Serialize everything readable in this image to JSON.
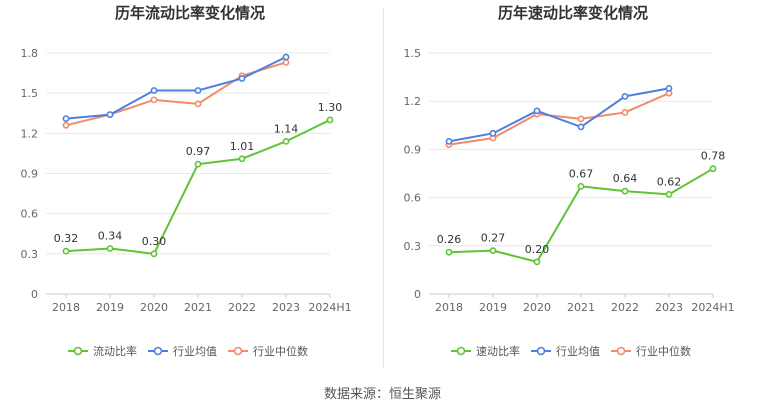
{
  "source": "数据来源：恒生聚源",
  "colors": {
    "company": "#5fc335",
    "industry_avg": "#4e7fe0",
    "industry_median": "#f38a6a",
    "grid": "#e8e8e8",
    "axis_text": "#666666",
    "title": "#333333"
  },
  "chart_data": [
    {
      "type": "line",
      "title": "历年流动比率变化情况",
      "categories": [
        "2018",
        "2019",
        "2020",
        "2021",
        "2022",
        "2023",
        "2024H1"
      ],
      "ylim": [
        0,
        1.8
      ],
      "yticks": [
        "0",
        "0.3",
        "0.6",
        "0.9",
        "1.2",
        "1.5",
        "1.8"
      ],
      "grid": true,
      "legend_position": "bottom",
      "series": [
        {
          "name": "流动比率",
          "color_key": "company",
          "values": [
            0.32,
            0.34,
            0.3,
            0.97,
            1.01,
            1.14,
            1.3
          ],
          "labels": [
            "0.32",
            "0.34",
            "0.30",
            "0.97",
            "1.01",
            "1.14",
            "1.30"
          ]
        },
        {
          "name": "行业均值",
          "color_key": "industry_avg",
          "values": [
            1.31,
            1.34,
            1.52,
            1.52,
            1.61,
            1.77,
            null
          ]
        },
        {
          "name": "行业中位数",
          "color_key": "industry_median",
          "values": [
            1.26,
            1.34,
            1.45,
            1.42,
            1.63,
            1.73,
            null
          ]
        }
      ]
    },
    {
      "type": "line",
      "title": "历年速动比率变化情况",
      "categories": [
        "2018",
        "2019",
        "2020",
        "2021",
        "2022",
        "2023",
        "2024H1"
      ],
      "ylim": [
        0,
        1.5
      ],
      "yticks": [
        "0",
        "0.3",
        "0.6",
        "0.9",
        "1.2",
        "1.5"
      ],
      "grid": true,
      "legend_position": "bottom",
      "series": [
        {
          "name": "速动比率",
          "color_key": "company",
          "values": [
            0.26,
            0.27,
            0.2,
            0.67,
            0.64,
            0.62,
            0.78
          ],
          "labels": [
            "0.26",
            "0.27",
            "0.20",
            "0.67",
            "0.64",
            "0.62",
            "0.78"
          ]
        },
        {
          "name": "行业均值",
          "color_key": "industry_avg",
          "values": [
            0.95,
            1.0,
            1.14,
            1.04,
            1.23,
            1.28,
            null
          ]
        },
        {
          "name": "行业中位数",
          "color_key": "industry_median",
          "values": [
            0.93,
            0.97,
            1.12,
            1.09,
            1.13,
            1.25,
            null
          ]
        }
      ]
    }
  ]
}
